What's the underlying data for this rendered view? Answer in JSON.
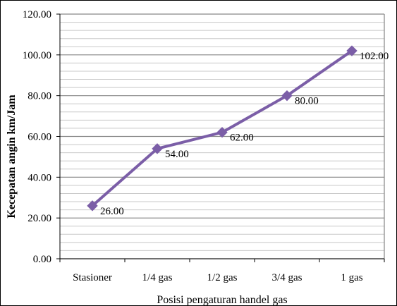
{
  "chart_data": {
    "type": "line",
    "title": "",
    "xlabel": "Posisi pengaturan handel gas",
    "ylabel": "Kecepatan angin km/Jam",
    "categories": [
      "Stasioner",
      "1/4 gas",
      "1/2 gas",
      "3/4 gas",
      "1 gas"
    ],
    "series": [
      {
        "values": [
          26.0,
          54.0,
          62.0,
          80.0,
          102.0
        ],
        "color": "#7B5EA7",
        "marker": "diamond"
      }
    ],
    "data_labels": [
      "26.00",
      "54.00",
      "62.00",
      "80.00",
      "102.00"
    ],
    "ylim": [
      0,
      120
    ],
    "y_ticks": [
      "0.00",
      "20.00",
      "40.00",
      "60.00",
      "80.00",
      "100.00",
      "120.00"
    ],
    "y_tick_values": [
      0,
      20,
      40,
      60,
      80,
      100,
      120
    ],
    "minor_grid_step": 4,
    "grid": true,
    "legend": "none",
    "colors": {
      "line": "#7B5EA7",
      "major_grid": "#868686",
      "minor_grid": "#C8C8C8",
      "frame": "#000000"
    }
  }
}
